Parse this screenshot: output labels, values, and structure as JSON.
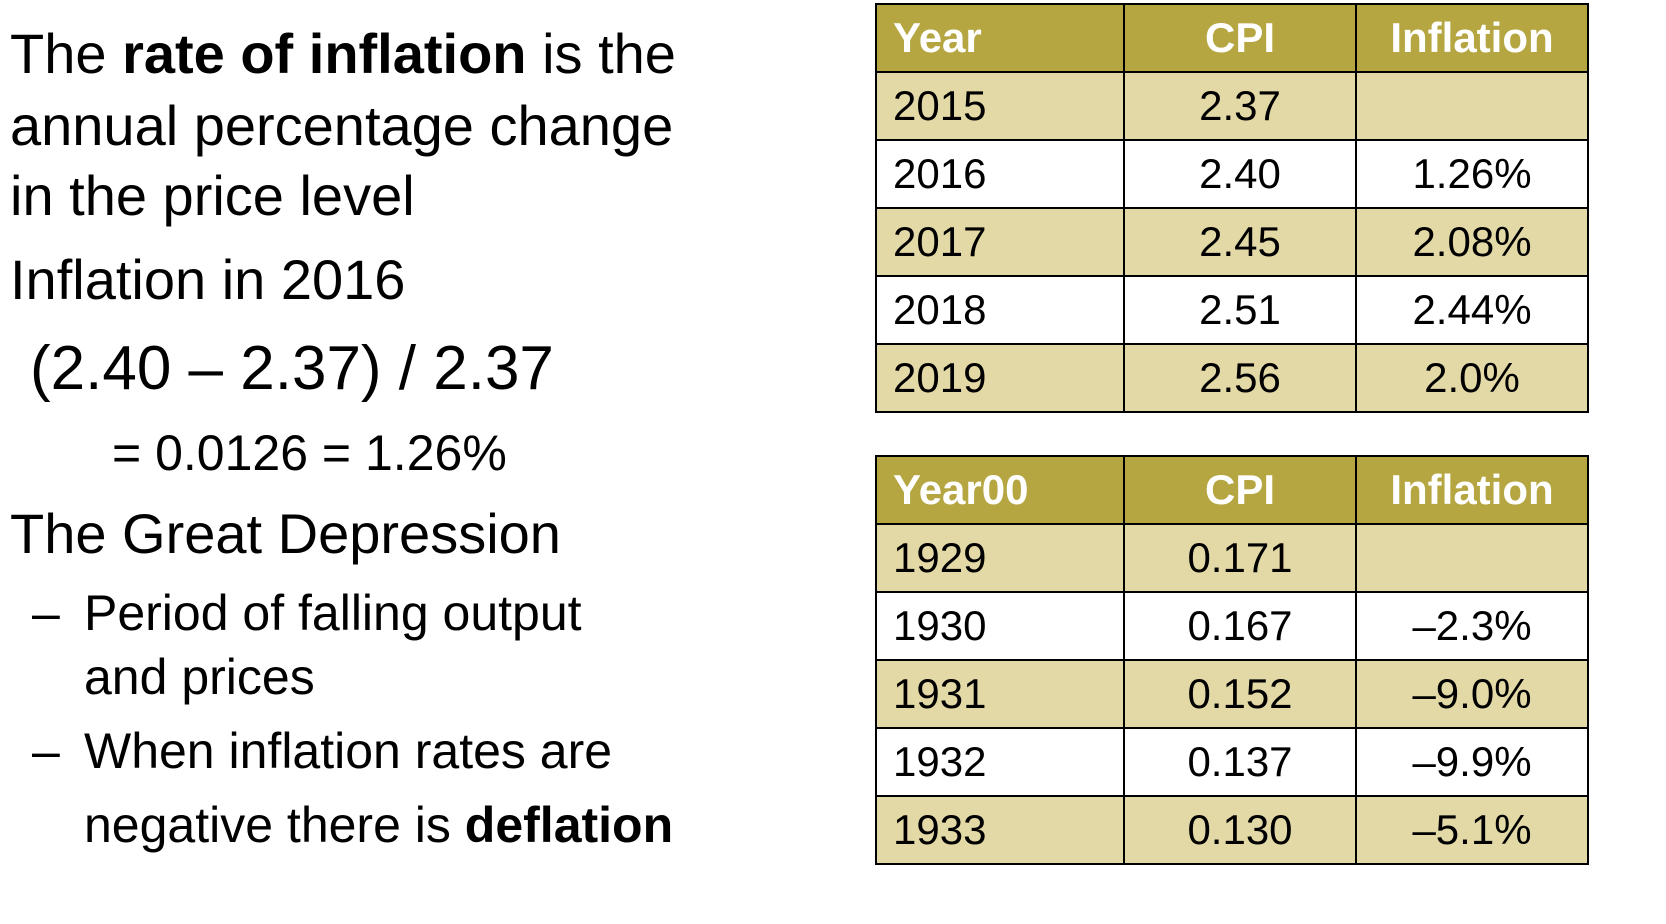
{
  "left_text": {
    "line1_pre": "The ",
    "line1_bold": "rate of inflation",
    "line1_post": " is the",
    "line2": "annual percentage change",
    "line3": "in the price level",
    "line4": "Inflation in 2016",
    "line5": "(2.40 – 2.37) / 2.37",
    "line6": "= 0.0126 = 1.26%",
    "line7": "The Great Depression",
    "bullet1_dash": "–",
    "bullet1_a": "Period of falling output",
    "bullet1_b": "and prices",
    "bullet2_dash": "–",
    "bullet2_a": "When inflation rates are",
    "bullet2_b_pre": "negative there is ",
    "bullet2_b_bold": "deflation"
  },
  "table_recent": {
    "headers": [
      "Year",
      "CPI",
      "Inflation"
    ],
    "rows": [
      [
        "2015",
        "2.37",
        ""
      ],
      [
        "2016",
        "2.40",
        "1.26%"
      ],
      [
        "2017",
        "2.45",
        "2.08%"
      ],
      [
        "2018",
        "2.51",
        "2.44%"
      ],
      [
        "2019",
        "2.56",
        "2.0%"
      ]
    ]
  },
  "table_depression": {
    "headers": [
      "Year00",
      "CPI",
      "Inflation"
    ],
    "rows": [
      [
        "1929",
        "0.171",
        ""
      ],
      [
        "1930",
        "0.167",
        "–2.3%"
      ],
      [
        "1931",
        "0.152",
        "–9.0%"
      ],
      [
        "1932",
        "0.137",
        "–9.9%"
      ],
      [
        "1933",
        "0.130",
        "–5.1%"
      ]
    ]
  },
  "colors": {
    "header_bg": "#b5a642",
    "header_text": "#ffffff",
    "band_bg": "#e2d9a6",
    "plain_bg": "#ffffff"
  }
}
